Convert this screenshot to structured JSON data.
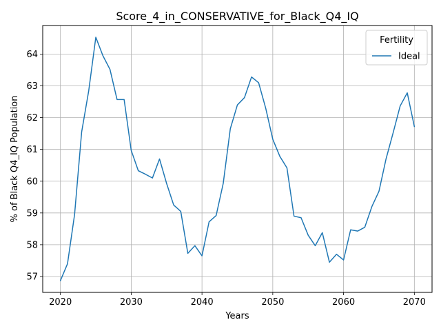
{
  "chart_data": {
    "type": "line",
    "title": "Score_4_in_CONSERVATIVE_for_Black_Q4_IQ",
    "xlabel": "Years",
    "ylabel": "% of Black Q4_IQ Population",
    "xlim": [
      2017.5,
      2072.5
    ],
    "ylim": [
      56.5,
      64.9
    ],
    "xticks": [
      2020,
      2030,
      2040,
      2050,
      2060,
      2070
    ],
    "yticks": [
      57,
      58,
      59,
      60,
      61,
      62,
      63,
      64
    ],
    "grid": true,
    "legend": {
      "title": "Fertility",
      "placement": "top-right",
      "entries": [
        "Ideal"
      ]
    },
    "series": [
      {
        "name": "Ideal",
        "color": "#1f77b4",
        "x": [
          2020,
          2021,
          2022,
          2023,
          2024,
          2025,
          2026,
          2027,
          2028,
          2029,
          2030,
          2031,
          2032,
          2033,
          2034,
          2035,
          2036,
          2037,
          2038,
          2039,
          2040,
          2041,
          2042,
          2043,
          2044,
          2045,
          2046,
          2047,
          2048,
          2049,
          2050,
          2051,
          2052,
          2053,
          2054,
          2055,
          2056,
          2057,
          2058,
          2059,
          2060,
          2061,
          2062,
          2063,
          2064,
          2065,
          2066,
          2067,
          2068,
          2069,
          2070
        ],
        "y": [
          56.87,
          57.4,
          58.95,
          61.55,
          62.85,
          64.53,
          63.95,
          63.52,
          62.57,
          62.57,
          60.97,
          60.33,
          60.22,
          60.1,
          60.7,
          59.93,
          59.25,
          59.05,
          57.73,
          57.97,
          57.65,
          58.72,
          58.92,
          59.93,
          61.65,
          62.4,
          62.63,
          63.28,
          63.1,
          62.3,
          61.32,
          60.78,
          60.42,
          58.9,
          58.85,
          58.3,
          57.97,
          58.38,
          57.45,
          57.7,
          57.52,
          58.47,
          58.43,
          58.55,
          59.2,
          59.68,
          60.7,
          61.52,
          62.37,
          62.78,
          61.72
        ]
      }
    ]
  }
}
